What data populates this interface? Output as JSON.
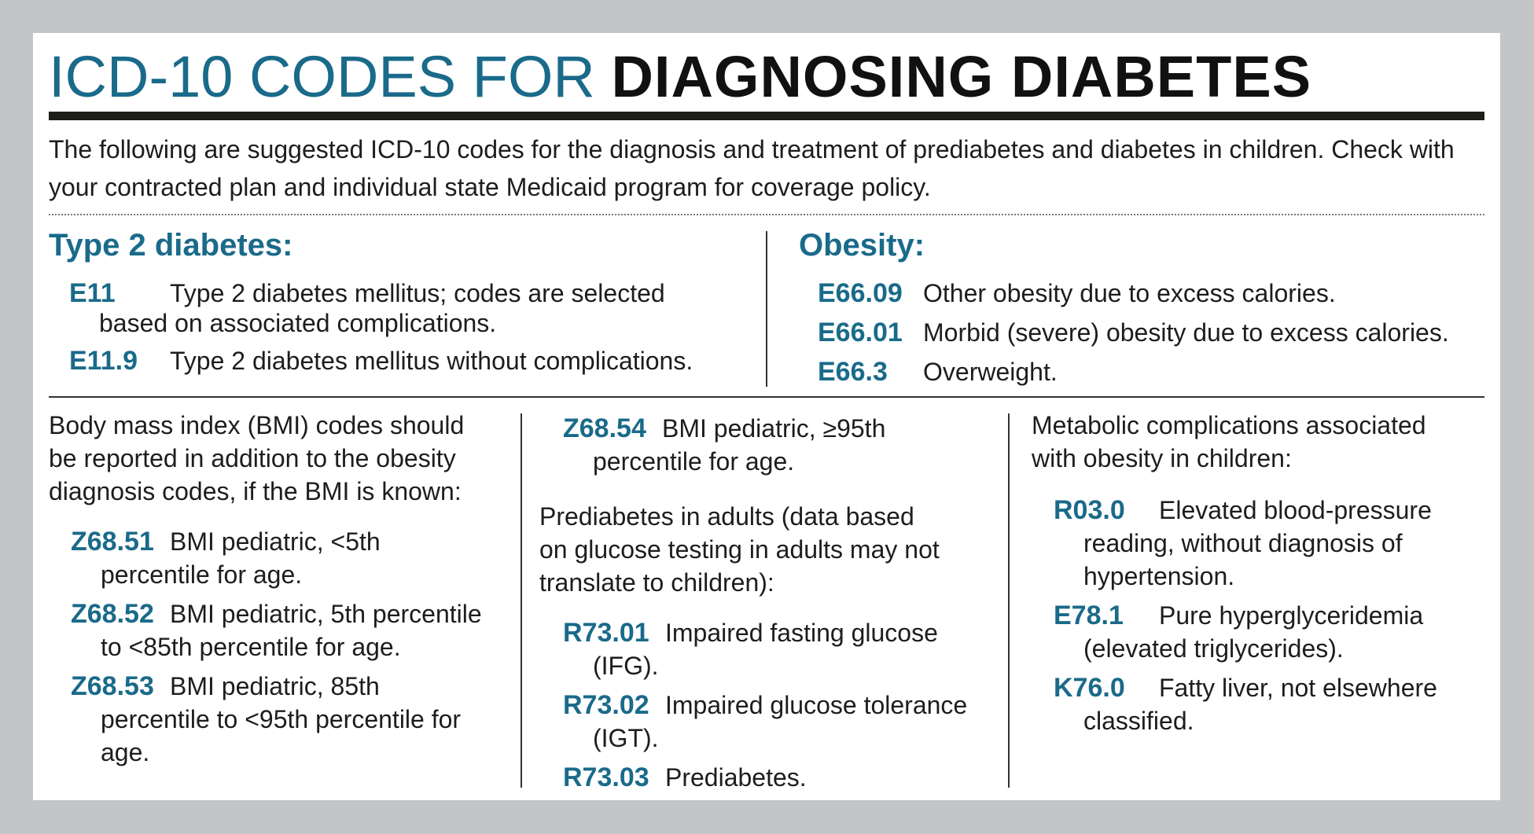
{
  "title": {
    "light": "ICD-10 CODES FOR",
    "bold": "DIAGNOSING DIABETES"
  },
  "intro": {
    "line1": "The following are suggested ICD-10 codes for the diagnosis and treatment of prediabetes and diabetes in children. Check with",
    "line2": "your contracted plan and individual state Medicaid program for coverage policy."
  },
  "type2": {
    "heading": "Type 2 diabetes:",
    "items": [
      {
        "code": "E11",
        "desc": "Type 2 diabetes mellitus; codes are selected",
        "cont": "based on associated complications."
      },
      {
        "code": "E11.9",
        "desc": "Type 2 diabetes mellitus without complications."
      }
    ]
  },
  "obesity": {
    "heading": "Obesity:",
    "items": [
      {
        "code": "E66.09",
        "desc": "Other obesity due to excess calories."
      },
      {
        "code": "E66.01",
        "desc": "Morbid (severe) obesity due to excess calories."
      },
      {
        "code": "E66.3",
        "desc": "Overweight."
      }
    ]
  },
  "bmi": {
    "intro": [
      "Body mass index (BMI) codes should",
      "be reported in addition to the obesity",
      "diagnosis codes, if the BMI is known:"
    ],
    "items": [
      {
        "code": "Z68.51",
        "desc": "BMI pediatric, <5th",
        "cont": [
          "percentile for age."
        ]
      },
      {
        "code": "Z68.52",
        "desc": "BMI pediatric, 5th percentile",
        "cont": [
          "to <85th percentile for age."
        ]
      },
      {
        "code": "Z68.53",
        "desc": "BMI pediatric, 85th",
        "cont": [
          "percentile to <95th percentile for",
          "age."
        ]
      },
      {
        "code": "Z68.54",
        "desc": "BMI pediatric, ≥95th",
        "cont": [
          "percentile for age."
        ]
      }
    ]
  },
  "prediabetes": {
    "intro": [
      "Prediabetes in adults (data based",
      "on glucose testing in adults may not",
      "translate to children):"
    ],
    "items": [
      {
        "code": "R73.01",
        "desc": "Impaired fasting glucose",
        "cont": [
          "(IFG)."
        ]
      },
      {
        "code": "R73.02",
        "desc": "Impaired glucose tolerance",
        "cont": [
          "(IGT)."
        ]
      },
      {
        "code": "R73.03",
        "desc": "Prediabetes."
      }
    ]
  },
  "metabolic": {
    "intro": [
      "Metabolic complications associated",
      "with obesity in children:"
    ],
    "items": [
      {
        "code": "R03.0",
        "desc": "Elevated blood-pressure",
        "cont": [
          "reading, without diagnosis of",
          "hypertension."
        ]
      },
      {
        "code": "E78.1",
        "desc": "Pure hyperglyceridemia",
        "cont": [
          "(elevated triglycerides)."
        ]
      },
      {
        "code": "K76.0",
        "desc": "Fatty liver, not elsewhere",
        "cont": [
          "classified."
        ]
      }
    ]
  }
}
